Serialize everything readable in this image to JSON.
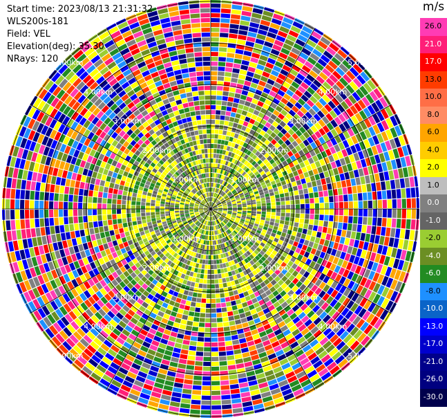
{
  "header": {
    "start_time": "Start time: 2023/08/13 21:31:32",
    "instrument": "WLS200s-181",
    "field": "Field: VEL",
    "elevation": "Elevation(deg): 35.30",
    "nrays": "NRays: 120"
  },
  "chart_data": {
    "type": "heatmap",
    "projection": "polar (PPI)",
    "field": "VEL",
    "n_rays": 120,
    "range_rings_km": [
      "1.00km",
      "2.00km",
      "3.00km",
      "4.00km",
      "5.00km"
    ],
    "spokes_deg": [
      0,
      30,
      60,
      90,
      120,
      150,
      180,
      210,
      240,
      270,
      300,
      330
    ],
    "colorbar": {
      "unit": "m/s",
      "boundaries": [
        "26.0",
        "21.0",
        "17.0",
        "13.0",
        "10.0",
        "8.0",
        "6.0",
        "4.0",
        "2.0",
        "1.0",
        "0.0",
        "-1.0",
        "-2.0",
        "-4.0",
        "-6.0",
        "-8.0",
        "-10.0",
        "-13.0",
        "-17.0",
        "-21.0",
        "-26.0",
        "-30.0"
      ],
      "colors": [
        "#ff3cb4",
        "#ff1e78",
        "#ff0000",
        "#ff3c00",
        "#ff6e46",
        "#ff8c64",
        "#ffa500",
        "#ffcc00",
        "#ffff00",
        "#bebebe",
        "#808080",
        "#646464",
        "#9acd32",
        "#6b8e23",
        "#228b22",
        "#1e90ff",
        "#0a64c8",
        "#0000ff",
        "#0000cd",
        "#00008b",
        "#000080",
        "#00004c"
      ]
    },
    "near_field_colors": [
      "#ffff00",
      "#ffff00",
      "#9acd32",
      "#6b8e23",
      "#808080",
      "#646464",
      "#228b22"
    ],
    "far_field_colors": [
      "#ff3cb4",
      "#ff1e78",
      "#ff0000",
      "#ffff00",
      "#9acd32",
      "#228b22",
      "#0000ff",
      "#0000cd",
      "#000080",
      "#1e90ff",
      "#808080",
      "#ffa500",
      "#ff3c00",
      "#6b8e23"
    ]
  }
}
